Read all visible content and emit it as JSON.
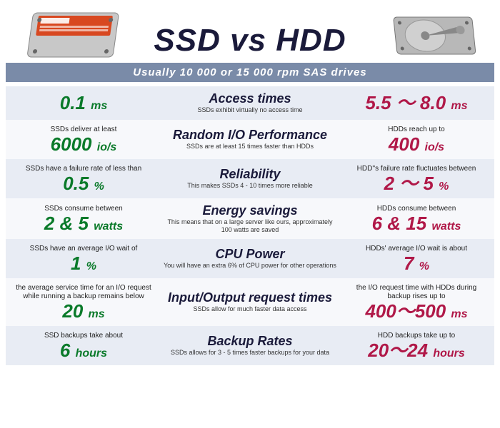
{
  "title": "SSD vs HDD",
  "subtitle": "Usually 10 000 or 15 000 rpm SAS drives",
  "colors": {
    "ssd": "#0a7a2a",
    "hdd": "#b01848",
    "title": "#1a1a3a",
    "bar": "#7a8ba8",
    "alt_bg": "#e8ecf4",
    "plain_bg": "#f7f8fb"
  },
  "rows": [
    {
      "ssd_desc": "",
      "ssd_val": "0.1",
      "ssd_unit": "ms",
      "cat": "Access times",
      "cat_sub": "SSDs exhibit virtually no access time",
      "hdd_desc": "",
      "hdd_val": "5.5 ～ 8.0",
      "hdd_unit": "ms"
    },
    {
      "ssd_desc": "SSDs deliver at least",
      "ssd_val": "6000",
      "ssd_unit": "io/s",
      "cat": "Random I/O Performance",
      "cat_sub": "SSDs are at least 15 times faster than HDDs",
      "hdd_desc": "HDDs reach up to",
      "hdd_val": "400",
      "hdd_unit": "io/s"
    },
    {
      "ssd_desc": "SSDs have a failure rate of less than",
      "ssd_val": "0.5",
      "ssd_unit": "%",
      "cat": "Reliability",
      "cat_sub": "This makes SSDs 4 - 10 times more reliable",
      "hdd_desc": "HDD''s failure rate fluctuates between",
      "hdd_val": "2 ～ 5",
      "hdd_unit": "%"
    },
    {
      "ssd_desc": "SSDs consume between",
      "ssd_val": "2 & 5",
      "ssd_unit": "watts",
      "cat": "Energy savings",
      "cat_sub": "This means that on a large server like ours, approximately 100 watts are saved",
      "hdd_desc": "HDDs consume between",
      "hdd_val": "6 & 15",
      "hdd_unit": "watts"
    },
    {
      "ssd_desc": "SSDs have an average I/O wait of",
      "ssd_val": "1",
      "ssd_unit": "%",
      "cat": "CPU Power",
      "cat_sub": "You will have an extra 6% of CPU power for other operations",
      "hdd_desc": "HDDs' average I/O wait is about",
      "hdd_val": "7",
      "hdd_unit": "%"
    },
    {
      "ssd_desc": "the average service time for an I/O request while running a backup remains below",
      "ssd_val": "20",
      "ssd_unit": "ms",
      "cat": "Input/Output request times",
      "cat_sub": "SSDs allow for much faster data access",
      "hdd_desc": "the I/O request time with HDDs during backup rises up to",
      "hdd_val": "400～500",
      "hdd_unit": "ms"
    },
    {
      "ssd_desc": "SSD backups take about",
      "ssd_val": "6",
      "ssd_unit": "hours",
      "cat": "Backup Rates",
      "cat_sub": "SSDs allows for 3 - 5 times faster backups for your data",
      "hdd_desc": "HDD backups take up to",
      "hdd_val": "20～24",
      "hdd_unit": "hours"
    }
  ]
}
